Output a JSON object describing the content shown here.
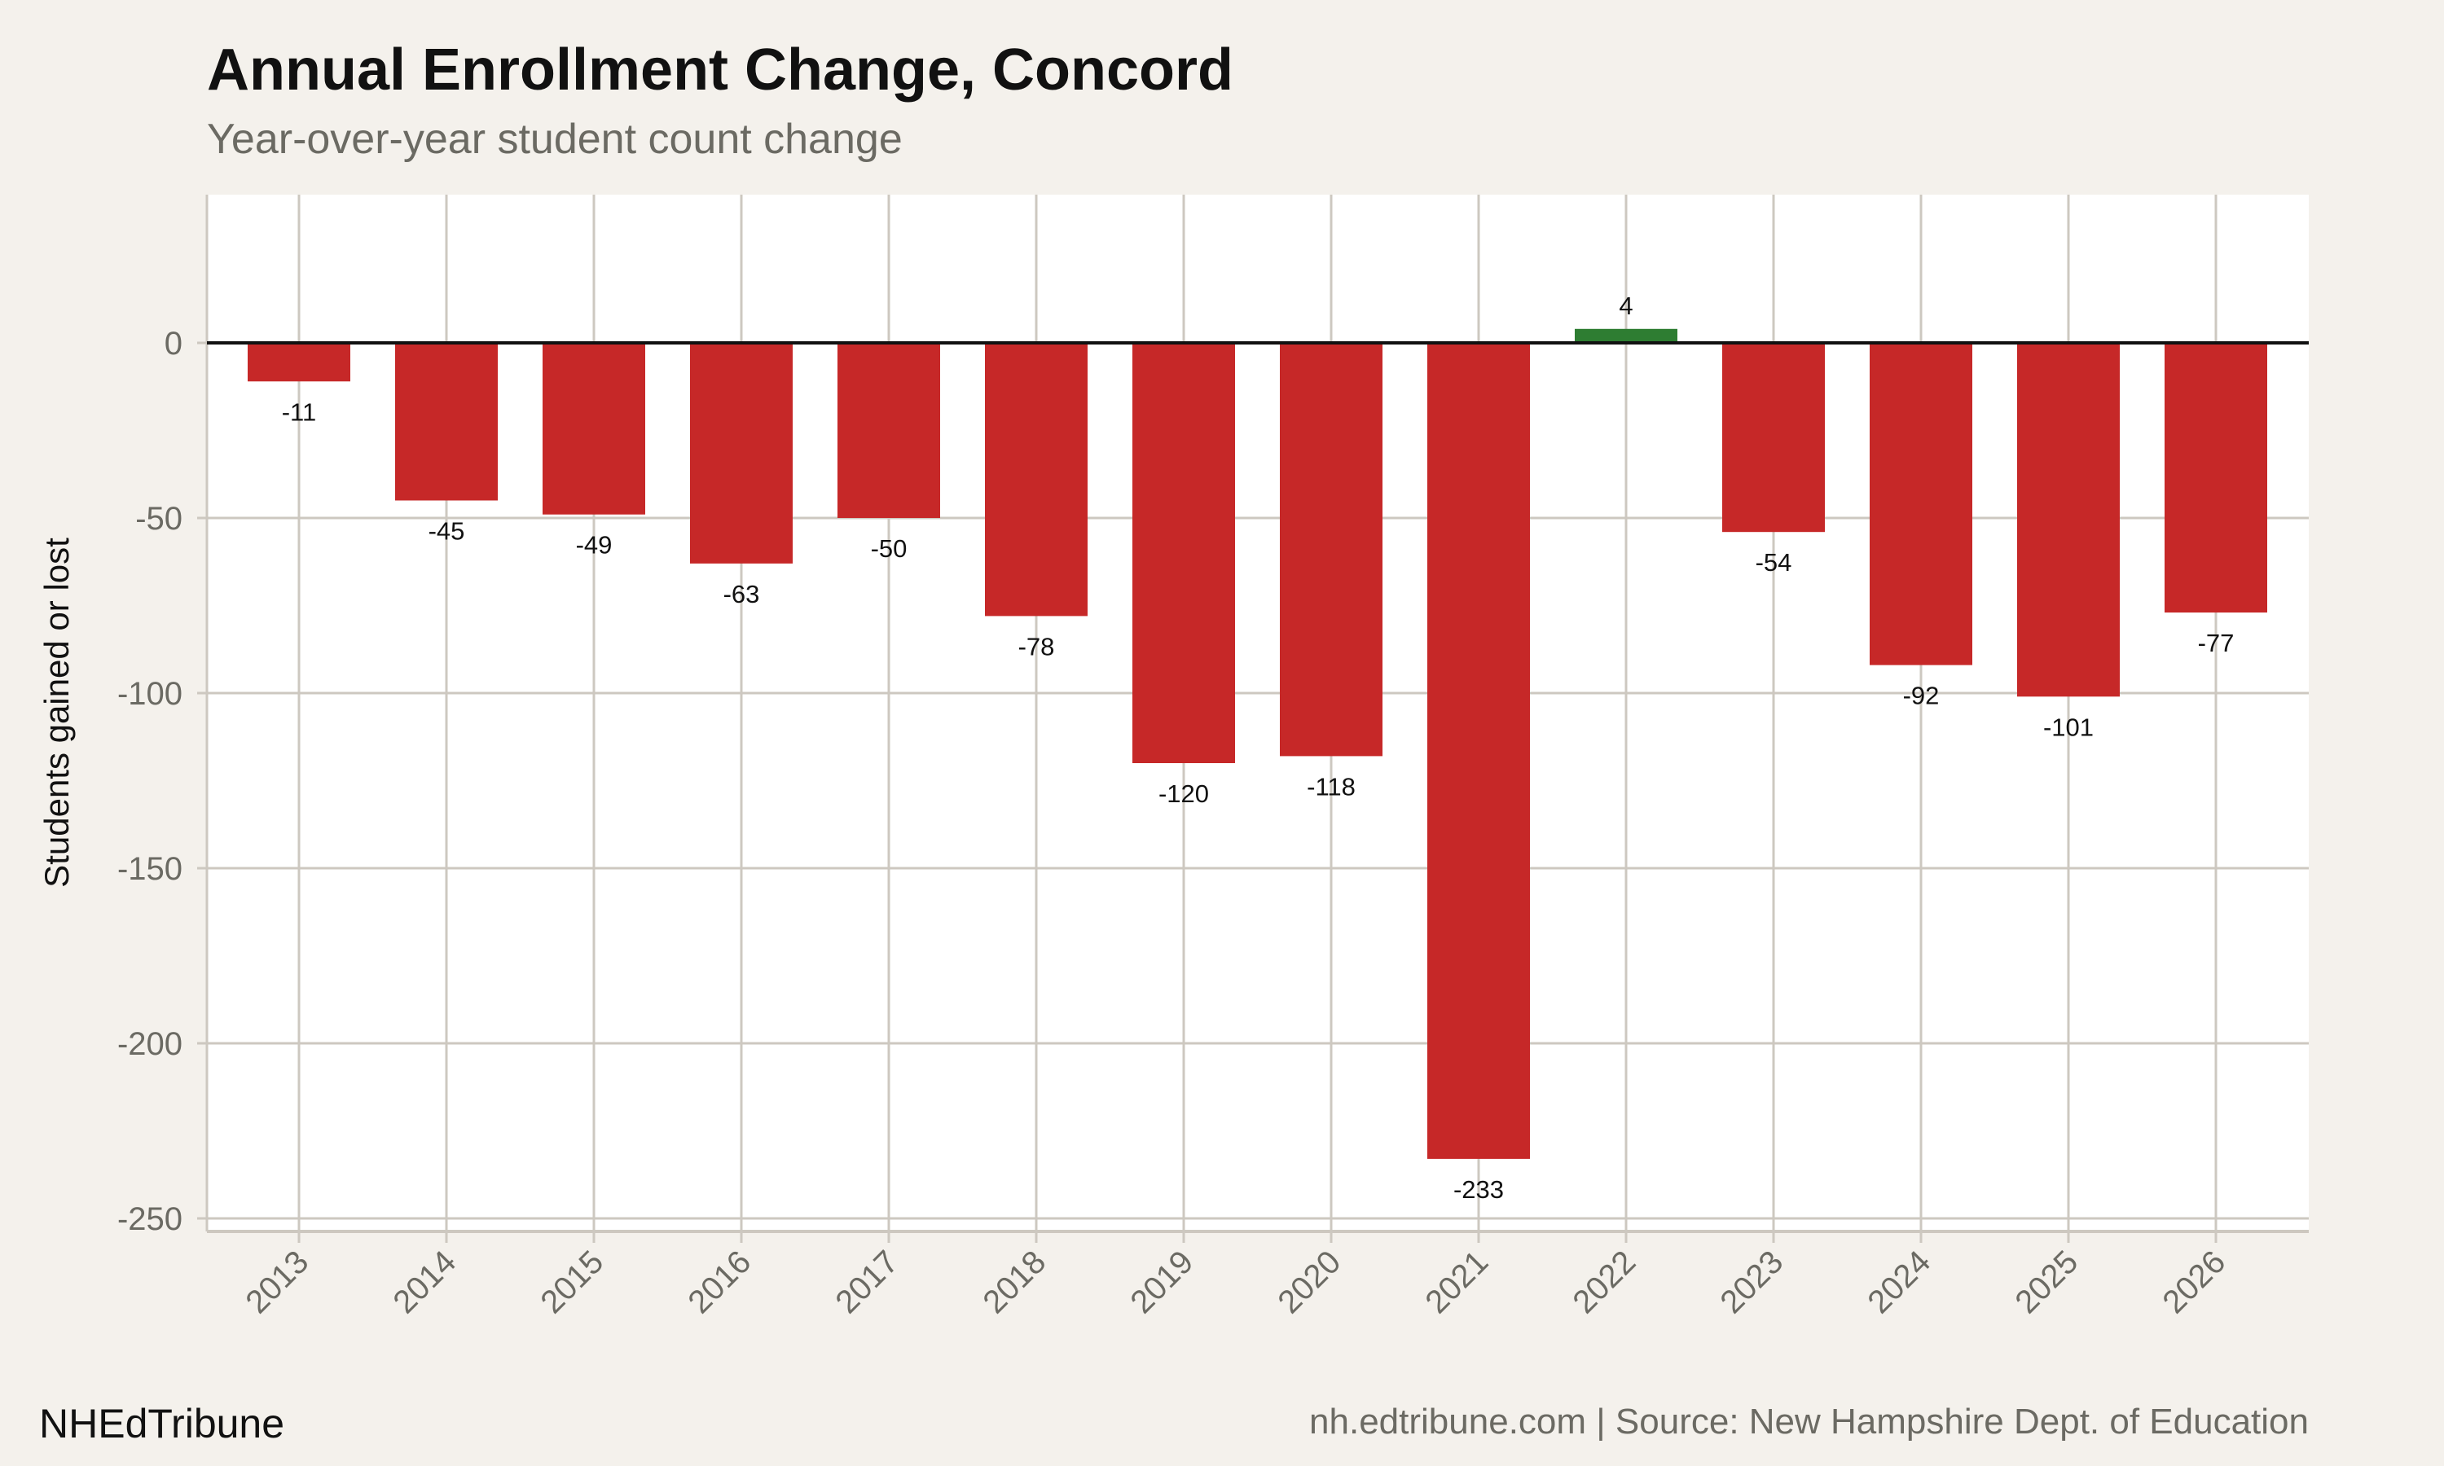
{
  "chart_data": {
    "type": "bar",
    "title": "Annual Enrollment Change, Concord",
    "subtitle": "Year-over-year student count change",
    "xlabel": "",
    "ylabel": "Students gained or lost",
    "categories": [
      "2013",
      "2014",
      "2015",
      "2016",
      "2017",
      "2018",
      "2019",
      "2020",
      "2021",
      "2022",
      "2023",
      "2024",
      "2025",
      "2026"
    ],
    "values": [
      -11,
      -45,
      -49,
      -63,
      -50,
      -78,
      -120,
      -118,
      -233,
      4,
      -54,
      -92,
      -101,
      -77
    ],
    "ylim": [
      -253,
      42
    ],
    "yticks": [
      0,
      -50,
      -100,
      -150,
      -200,
      -250
    ],
    "grid": true,
    "legend": "none",
    "colors": {
      "negative": "#c62828",
      "positive": "#2e7d32",
      "background": "#f4f1ec",
      "panel": "#ffffff",
      "grid": "#cdc8c0"
    }
  },
  "footer": {
    "brand": "NHEdTribune",
    "source": "nh.edtribune.com | Source: New Hampshire Dept. of Education"
  }
}
